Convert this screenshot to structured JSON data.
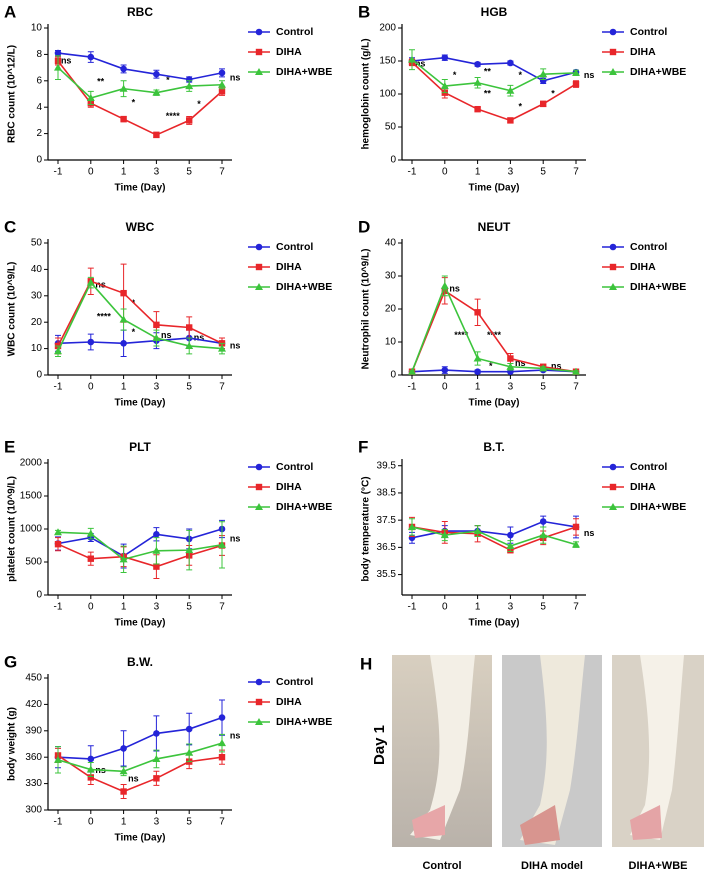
{
  "chart_data": [
    {
      "type": "line",
      "panel": "A",
      "title": "RBC",
      "x_label": "Time (Day)",
      "y_label": "RBC count (10^12/L)",
      "categories": [
        "-1",
        "0",
        "1",
        "3",
        "5",
        "7"
      ],
      "ylim": [
        0,
        10
      ],
      "yticks": [
        0,
        2,
        4,
        6,
        8,
        10
      ],
      "series": [
        {
          "name": "Control",
          "color": "#2424d8",
          "marker": "circle",
          "values": [
            8.1,
            7.8,
            6.9,
            6.5,
            6.1,
            6.6
          ],
          "errors": [
            0.2,
            0.4,
            0.3,
            0.3,
            0.2,
            0.3
          ]
        },
        {
          "name": "DIHA",
          "color": "#e8262a",
          "marker": "square",
          "values": [
            7.5,
            4.3,
            3.1,
            1.9,
            3.0,
            5.2
          ],
          "errors": [
            0.3,
            0.3,
            0.2,
            0.2,
            0.3,
            0.3
          ]
        },
        {
          "name": "DIHA+WBE",
          "color": "#3cc43c",
          "marker": "triangle",
          "values": [
            7.0,
            4.7,
            5.4,
            5.1,
            5.6,
            5.7
          ],
          "errors": [
            0.9,
            0.5,
            0.6,
            0.2,
            0.4,
            0.3
          ]
        }
      ],
      "annotations": [
        {
          "text": "ns",
          "x": 0.25,
          "y": 7.5
        },
        {
          "text": "**",
          "x": 1.3,
          "y": 5.9
        },
        {
          "text": "*",
          "x": 2.3,
          "y": 4.3
        },
        {
          "text": "*",
          "x": 3.35,
          "y": 6.0
        },
        {
          "text": "****",
          "x": 3.5,
          "y": 3.3
        },
        {
          "text": "*",
          "x": 4.3,
          "y": 4.2
        },
        {
          "text": "ns",
          "x": 5.4,
          "y": 6.2
        }
      ]
    },
    {
      "type": "line",
      "panel": "B",
      "title": "HGB",
      "x_label": "Time (Day)",
      "y_label": "hemoglobin count (g/L)",
      "categories": [
        "-1",
        "0",
        "1",
        "3",
        "5",
        "7"
      ],
      "ylim": [
        0,
        200
      ],
      "yticks": [
        0,
        50,
        100,
        150,
        200
      ],
      "series": [
        {
          "name": "Control",
          "color": "#2424d8",
          "marker": "circle",
          "values": [
            150,
            155,
            145,
            147,
            120,
            133
          ],
          "errors": [
            5,
            4,
            3,
            3,
            4,
            3
          ]
        },
        {
          "name": "DIHA",
          "color": "#e8262a",
          "marker": "square",
          "values": [
            148,
            102,
            77,
            60,
            85,
            115
          ],
          "errors": [
            5,
            8,
            3,
            3,
            4,
            5
          ]
        },
        {
          "name": "DIHA+WBE",
          "color": "#3cc43c",
          "marker": "triangle",
          "values": [
            152,
            112,
            117,
            105,
            130,
            132
          ],
          "errors": [
            15,
            10,
            8,
            8,
            8,
            4
          ]
        }
      ],
      "annotations": [
        {
          "text": "ns",
          "x": 0.25,
          "y": 145
        },
        {
          "text": "*",
          "x": 1.3,
          "y": 128
        },
        {
          "text": "**",
          "x": 2.3,
          "y": 133
        },
        {
          "text": "**",
          "x": 2.3,
          "y": 100
        },
        {
          "text": "*",
          "x": 3.3,
          "y": 128
        },
        {
          "text": "*",
          "x": 3.3,
          "y": 80
        },
        {
          "text": "*",
          "x": 4.3,
          "y": 100
        },
        {
          "text": "ns",
          "x": 5.4,
          "y": 128
        }
      ]
    },
    {
      "type": "line",
      "panel": "C",
      "title": "WBC",
      "x_label": "Time (Day)",
      "y_label": "WBC count (10^9/L)",
      "categories": [
        "-1",
        "0",
        "1",
        "3",
        "5",
        "7"
      ],
      "ylim": [
        0,
        50
      ],
      "yticks": [
        0,
        10,
        20,
        30,
        40,
        50
      ],
      "series": [
        {
          "name": "Control",
          "color": "#2424d8",
          "marker": "circle",
          "values": [
            12,
            12.5,
            12,
            13,
            14,
            12
          ],
          "errors": [
            3,
            3,
            5,
            3,
            3,
            2
          ]
        },
        {
          "name": "DIHA",
          "color": "#e8262a",
          "marker": "square",
          "values": [
            11,
            35.5,
            31,
            19,
            18,
            12
          ],
          "errors": [
            3,
            5,
            11,
            5,
            4,
            2
          ]
        },
        {
          "name": "DIHA+WBE",
          "color": "#3cc43c",
          "marker": "triangle",
          "values": [
            9,
            35,
            21,
            14,
            11,
            10
          ],
          "errors": [
            2,
            2,
            4,
            3,
            3,
            2
          ]
        }
      ],
      "annotations": [
        {
          "text": "ns",
          "x": 1.3,
          "y": 34
        },
        {
          "text": "****",
          "x": 1.4,
          "y": 22
        },
        {
          "text": "*",
          "x": 2.3,
          "y": 27
        },
        {
          "text": "*",
          "x": 2.3,
          "y": 16
        },
        {
          "text": "ns",
          "x": 3.3,
          "y": 15
        },
        {
          "text": "ns",
          "x": 4.3,
          "y": 14
        },
        {
          "text": "ns",
          "x": 5.4,
          "y": 11
        }
      ]
    },
    {
      "type": "line",
      "panel": "D",
      "title": "NEUT",
      "x_label": "Time (Day)",
      "y_label": "Neutrophil count (10^9/L)",
      "categories": [
        "-1",
        "0",
        "1",
        "3",
        "5",
        "7"
      ],
      "ylim": [
        0,
        40
      ],
      "yticks": [
        0,
        10,
        20,
        30,
        40
      ],
      "series": [
        {
          "name": "Control",
          "color": "#2424d8",
          "marker": "circle",
          "values": [
            1,
            1.5,
            1,
            1,
            1.5,
            1
          ],
          "errors": [
            0.3,
            1,
            0.5,
            0.3,
            0.3,
            0.3
          ]
        },
        {
          "name": "DIHA",
          "color": "#e8262a",
          "marker": "square",
          "values": [
            1,
            25.5,
            19,
            5,
            2.5,
            1
          ],
          "errors": [
            0.3,
            4,
            4,
            1.5,
            0.5,
            0.3
          ]
        },
        {
          "name": "DIHA+WBE",
          "color": "#3cc43c",
          "marker": "triangle",
          "values": [
            1,
            27,
            5,
            2.5,
            2,
            1
          ],
          "errors": [
            0.3,
            3,
            2,
            1,
            0.5,
            0.3
          ]
        }
      ],
      "annotations": [
        {
          "text": "ns",
          "x": 1.3,
          "y": 26
        },
        {
          "text": "****",
          "x": 1.5,
          "y": 12
        },
        {
          "text": "****",
          "x": 2.5,
          "y": 12
        },
        {
          "text": "*",
          "x": 2.4,
          "y": 2.5
        },
        {
          "text": "ns",
          "x": 3.3,
          "y": 3.5
        },
        {
          "text": "ns",
          "x": 4.4,
          "y": 2.5
        }
      ]
    },
    {
      "type": "line",
      "panel": "E",
      "title": "PLT",
      "x_label": "Time (Day)",
      "y_label": "platelet count (10^9/L)",
      "categories": [
        "-1",
        "0",
        "1",
        "3",
        "5",
        "7"
      ],
      "ylim": [
        0,
        2000
      ],
      "yticks": [
        0,
        500,
        1000,
        1500,
        2000
      ],
      "series": [
        {
          "name": "Control",
          "color": "#2424d8",
          "marker": "circle",
          "values": [
            780,
            870,
            590,
            920,
            850,
            1000
          ],
          "errors": [
            100,
            60,
            180,
            100,
            150,
            130
          ]
        },
        {
          "name": "DIHA",
          "color": "#e8262a",
          "marker": "square",
          "values": [
            770,
            550,
            580,
            430,
            600,
            750
          ],
          "errors": [
            100,
            100,
            150,
            180,
            150,
            150
          ]
        },
        {
          "name": "DIHA+WBE",
          "color": "#3cc43c",
          "marker": "triangle",
          "values": [
            950,
            930,
            540,
            670,
            680,
            760
          ],
          "errors": [
            30,
            80,
            200,
            200,
            300,
            350
          ]
        }
      ],
      "annotations": [
        {
          "text": "ns",
          "x": 5.4,
          "y": 850
        }
      ]
    },
    {
      "type": "line",
      "panel": "F",
      "title": "B.T.",
      "x_label": "Time (Day)",
      "y_label": "body temperature (°C)",
      "categories": [
        "-1",
        "0",
        "1",
        "3",
        "5",
        "7"
      ],
      "ylim": [
        34.75,
        39.6
      ],
      "yticks": [
        35.5,
        36.5,
        37.5,
        38.5,
        39.5
      ],
      "series": [
        {
          "name": "Control",
          "color": "#2424d8",
          "marker": "circle",
          "values": [
            36.85,
            37.1,
            37.1,
            36.95,
            37.45,
            37.25
          ],
          "errors": [
            0.2,
            0.2,
            0.2,
            0.3,
            0.2,
            0.4
          ]
        },
        {
          "name": "DIHA",
          "color": "#e8262a",
          "marker": "square",
          "values": [
            37.25,
            37.05,
            37.0,
            36.4,
            36.85,
            37.25
          ],
          "errors": [
            0.35,
            0.4,
            0.3,
            0.1,
            0.25,
            0.3
          ]
        },
        {
          "name": "DIHA+WBE",
          "color": "#3cc43c",
          "marker": "triangle",
          "values": [
            37.25,
            36.95,
            37.1,
            36.55,
            36.95,
            36.6
          ],
          "errors": [
            0.3,
            0.2,
            0.2,
            0.2,
            0.3,
            0.1
          ]
        }
      ],
      "annotations": [
        {
          "text": "ns",
          "x": 5.4,
          "y": 37.0
        }
      ]
    },
    {
      "type": "line",
      "panel": "G",
      "title": "B.W.",
      "x_label": "Time (Day)",
      "y_label": "body weight (g)",
      "categories": [
        "-1",
        "0",
        "1",
        "3",
        "5",
        "7"
      ],
      "ylim": [
        300,
        450
      ],
      "yticks": [
        300,
        330,
        360,
        390,
        420,
        450
      ],
      "series": [
        {
          "name": "Control",
          "color": "#2424d8",
          "marker": "circle",
          "values": [
            360,
            358,
            370,
            387,
            392,
            405
          ],
          "errors": [
            12,
            15,
            20,
            20,
            18,
            20
          ]
        },
        {
          "name": "DIHA",
          "color": "#e8262a",
          "marker": "square",
          "values": [
            362,
            337,
            321,
            336,
            355,
            360
          ],
          "errors": [
            8,
            8,
            8,
            8,
            8,
            8
          ]
        },
        {
          "name": "DIHA+WBE",
          "color": "#3cc43c",
          "marker": "triangle",
          "values": [
            357,
            346,
            344,
            358,
            365,
            376
          ],
          "errors": [
            15,
            8,
            5,
            10,
            10,
            10
          ]
        }
      ],
      "annotations": [
        {
          "text": "ns",
          "x": 1.3,
          "y": 345
        },
        {
          "text": "ns",
          "x": 2.3,
          "y": 335
        },
        {
          "text": "ns",
          "x": 5.4,
          "y": 384
        }
      ]
    }
  ],
  "photo_panel": {
    "panel": "H",
    "side_label": "Day 1",
    "captions": [
      "Control",
      "DIHA model",
      "DIHA+WBE"
    ]
  }
}
